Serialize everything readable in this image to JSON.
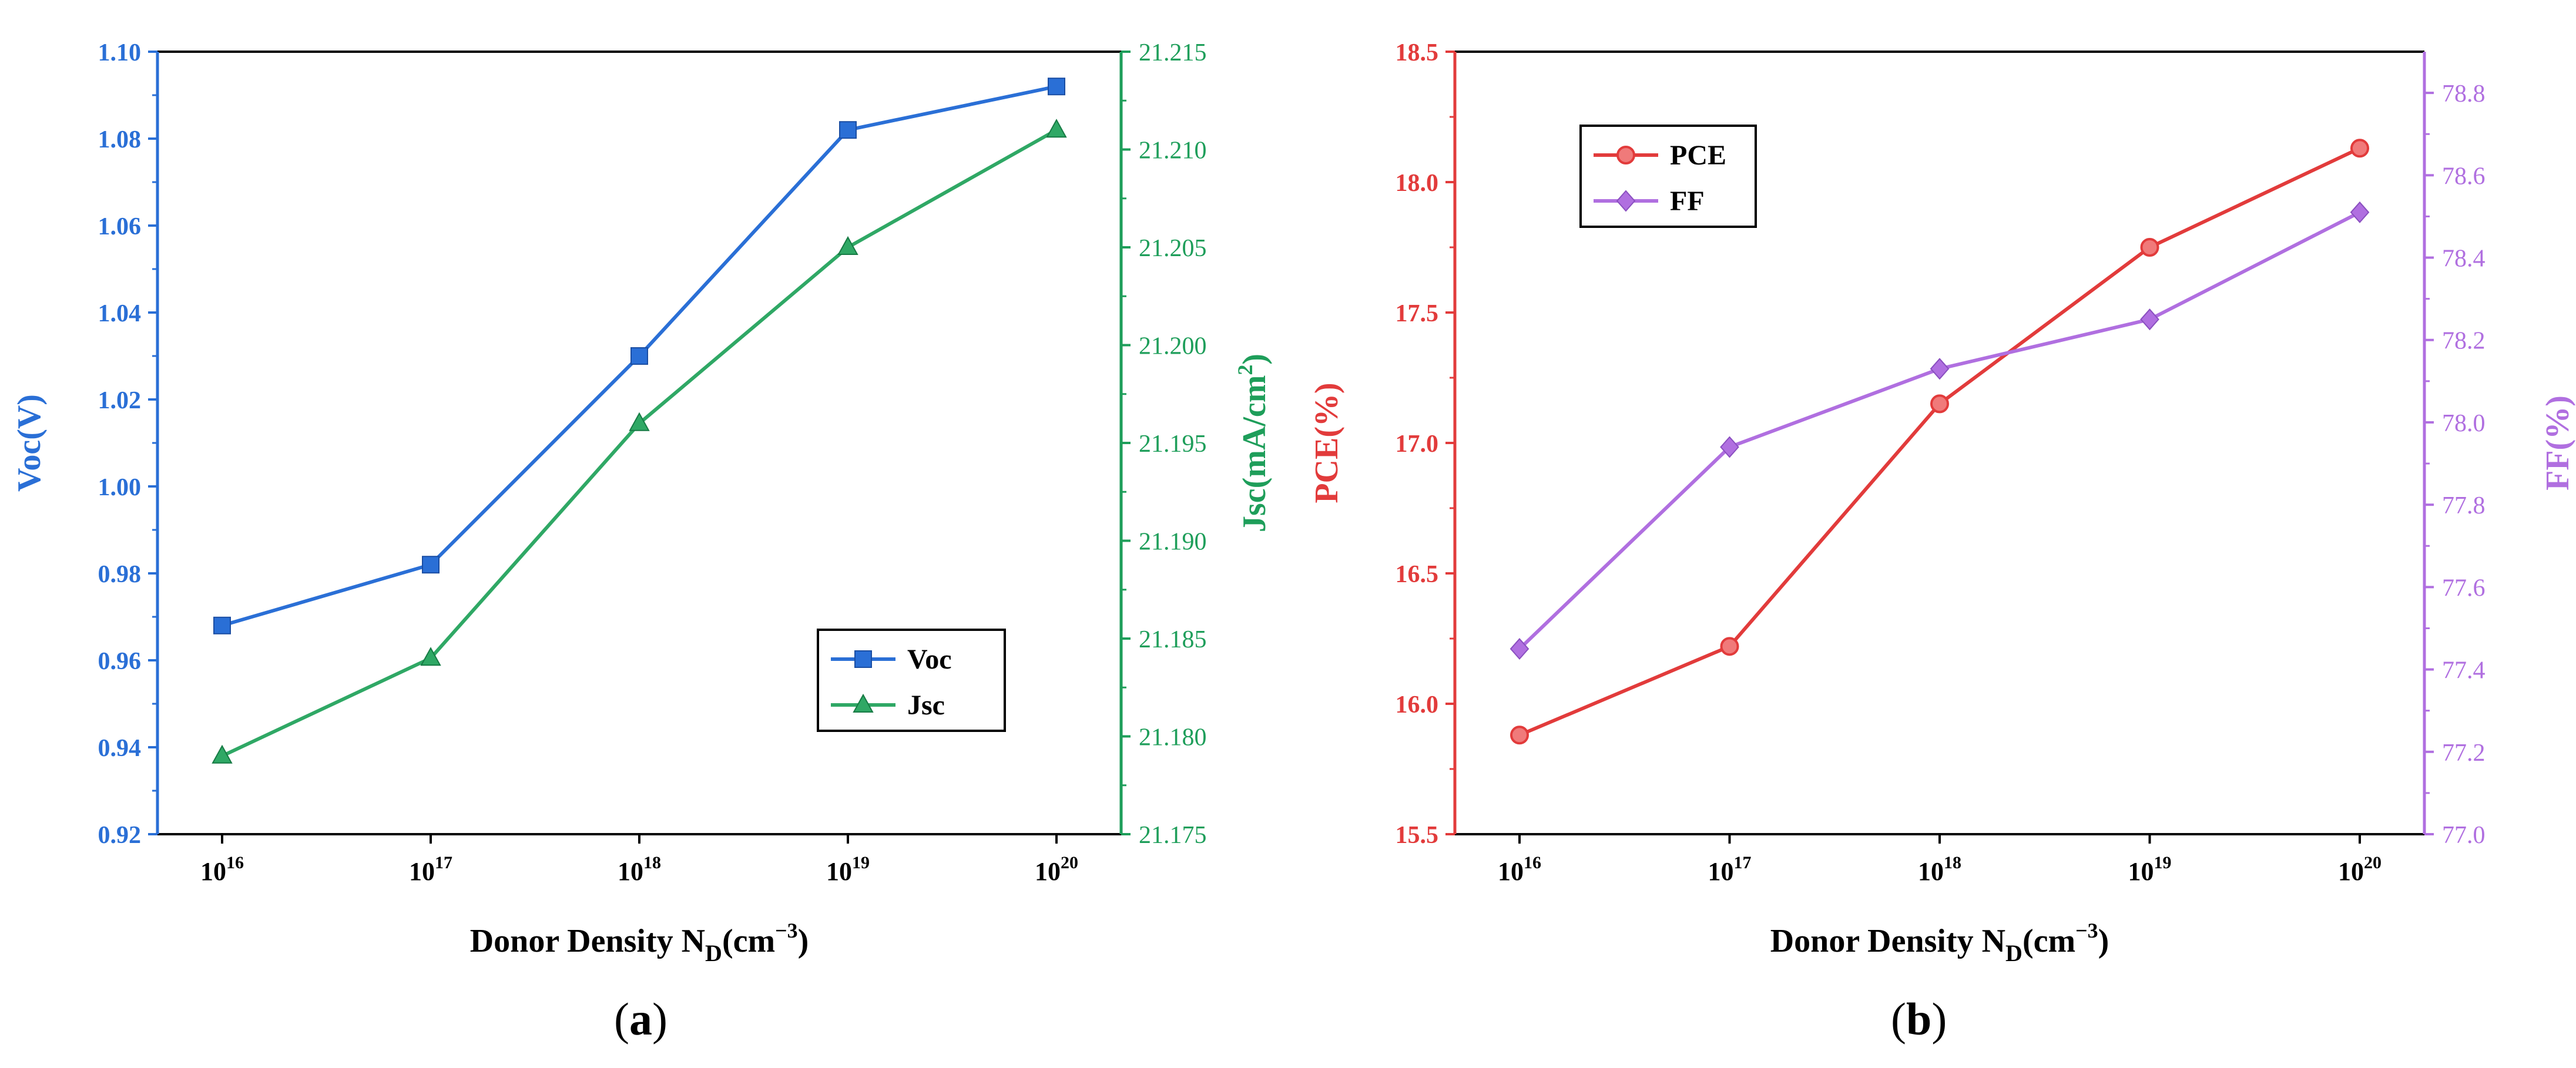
{
  "chart_data": [
    {
      "type": "line",
      "panel_label": "a",
      "categories": [
        "10^16",
        "10^17",
        "10^18",
        "10^19",
        "10^20"
      ],
      "x_tick_labels": [
        {
          "base": "10",
          "exp": "16"
        },
        {
          "base": "10",
          "exp": "17"
        },
        {
          "base": "10",
          "exp": "18"
        },
        {
          "base": "10",
          "exp": "19"
        },
        {
          "base": "10",
          "exp": "20"
        }
      ],
      "xlabel": {
        "text": "Donor Density N",
        "sub": "D",
        "unit": "(cm",
        "sup": "−3",
        "close": ")"
      },
      "left_axis": {
        "label": "Voc(V)",
        "color": "#2a6fd6",
        "ylim": [
          0.92,
          1.1
        ],
        "ticks": [
          "0.92",
          "0.94",
          "0.96",
          "0.98",
          "1.00",
          "1.02",
          "1.04",
          "1.06",
          "1.08",
          "1.10"
        ]
      },
      "right_axis": {
        "label": {
          "text": "Jsc(mA/cm",
          "sup": "2",
          "close": ")"
        },
        "color": "#1e9e5a",
        "ylim": [
          21.175,
          21.215
        ],
        "ticks": [
          "21.175",
          "21.180",
          "21.185",
          "21.190",
          "21.195",
          "21.200",
          "21.205",
          "21.210",
          "21.215"
        ]
      },
      "series": [
        {
          "name": "Voc",
          "axis": "left",
          "color": "#2a6fd6",
          "marker": "square",
          "values": [
            0.968,
            0.982,
            1.03,
            1.082,
            1.092
          ]
        },
        {
          "name": "Jsc",
          "axis": "right",
          "color": "#2fa865",
          "marker": "triangle",
          "values": [
            21.179,
            21.184,
            21.196,
            21.205,
            21.211
          ]
        }
      ],
      "legend": "middle-right"
    },
    {
      "type": "line",
      "panel_label": "b",
      "categories": [
        "10^16",
        "10^17",
        "10^18",
        "10^19",
        "10^20"
      ],
      "x_tick_labels": [
        {
          "base": "10",
          "exp": "16"
        },
        {
          "base": "10",
          "exp": "17"
        },
        {
          "base": "10",
          "exp": "18"
        },
        {
          "base": "10",
          "exp": "19"
        },
        {
          "base": "10",
          "exp": "20"
        }
      ],
      "xlabel": {
        "text": "Donor Density N",
        "sub": "D",
        "unit": "(cm",
        "sup": "−3",
        "close": ")"
      },
      "left_axis": {
        "label": "PCE(%)",
        "color": "#e23b3b",
        "ylim": [
          15.5,
          18.5
        ],
        "ticks": [
          "15.5",
          "16.0",
          "16.5",
          "17.0",
          "17.5",
          "18.0",
          "18.5"
        ]
      },
      "right_axis": {
        "label": "FF(%)",
        "color": "#b06fe0",
        "ylim": [
          77.0,
          78.9
        ],
        "ticks": [
          "77.0",
          "77.2",
          "77.4",
          "77.6",
          "77.8",
          "78.0",
          "78.2",
          "78.4",
          "78.6",
          "78.8"
        ]
      },
      "series": [
        {
          "name": "PCE",
          "axis": "left",
          "color": "#e23b3b",
          "marker": "circle",
          "values": [
            15.88,
            16.22,
            17.15,
            17.75,
            18.13
          ]
        },
        {
          "name": "FF",
          "axis": "right",
          "color": "#b06fe0",
          "marker": "diamond",
          "values": [
            77.45,
            77.94,
            78.13,
            78.25,
            78.51
          ]
        }
      ],
      "legend": "top-left"
    }
  ]
}
